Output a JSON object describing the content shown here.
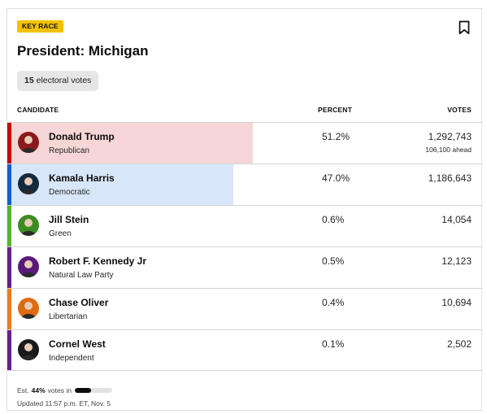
{
  "race": {
    "badge": "KEY RACE",
    "title": "President: Michigan",
    "electoral_votes_num": "15",
    "electoral_votes_label": "electoral votes"
  },
  "table": {
    "headers": {
      "candidate": "CANDIDATE",
      "percent": "PERCENT",
      "votes": "VOTES"
    }
  },
  "candidates": [
    {
      "name": "Donald Trump",
      "party": "Republican",
      "percent": "51.2%",
      "votes": "1,292,743",
      "ahead": "106,100 ahead",
      "bar_color": "#cc0000",
      "fill_color": "#f6d6d6",
      "fill_fraction": 0.512,
      "avatar_icon": "trump-avatar",
      "avatar_bg": "#8b1a1a"
    },
    {
      "name": "Kamala Harris",
      "party": "Democratic",
      "percent": "47.0%",
      "votes": "1,186,643",
      "bar_color": "#0b61d4",
      "fill_color": "#d7e6f8",
      "fill_fraction": 0.47,
      "avatar_icon": "harris-avatar",
      "avatar_bg": "#13293d"
    },
    {
      "name": "Jill Stein",
      "party": "Green",
      "percent": "0.6%",
      "votes": "14,054",
      "bar_color": "#55b32b",
      "avatar_icon": "stein-avatar",
      "avatar_bg": "#3d8c23"
    },
    {
      "name": "Robert F. Kennedy Jr",
      "party": "Natural Law Party",
      "percent": "0.5%",
      "votes": "12,123",
      "bar_color": "#6b1e8f",
      "avatar_icon": "kennedy-avatar",
      "avatar_bg": "#5a1a7a"
    },
    {
      "name": "Chase Oliver",
      "party": "Libertarian",
      "percent": "0.4%",
      "votes": "10,694",
      "bar_color": "#f07a17",
      "avatar_icon": "oliver-avatar",
      "avatar_bg": "#e06a10"
    },
    {
      "name": "Cornel West",
      "party": "Independent",
      "percent": "0.1%",
      "votes": "2,502",
      "bar_color": "#6b1e8f",
      "avatar_icon": "west-avatar",
      "avatar_bg": "#1a1a1a"
    }
  ],
  "footer": {
    "est_prefix": "Est.",
    "est_percent": "44%",
    "est_suffix": "votes in",
    "est_fraction": 0.44,
    "updated": "Updated 11:57 p.m. ET, Nov. 5"
  },
  "icons": {
    "bookmark": "bookmark-icon"
  }
}
